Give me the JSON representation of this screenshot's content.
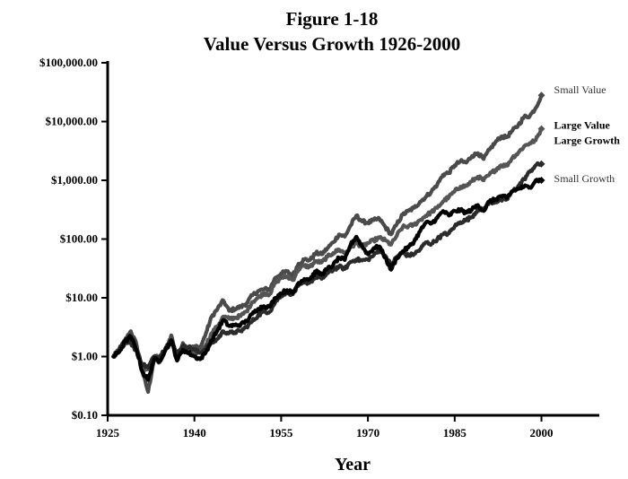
{
  "chart_data": {
    "type": "line",
    "title_line1": "Figure 1-18",
    "title_line2": "Value Versus Growth 1926-2000",
    "xlabel": "Year",
    "ylabel": "",
    "y_scale": "log",
    "xlim": [
      1925,
      2010
    ],
    "ylim": [
      0.1,
      100000
    ],
    "x_ticks": [
      {
        "value": 1925,
        "label": "1925"
      },
      {
        "value": 1940,
        "label": "1940"
      },
      {
        "value": 1955,
        "label": "1955"
      },
      {
        "value": 1970,
        "label": "1970"
      },
      {
        "value": 1985,
        "label": "1985"
      },
      {
        "value": 2000,
        "label": "2000"
      }
    ],
    "y_ticks": [
      {
        "value": 0.1,
        "label": "$0.10"
      },
      {
        "value": 1,
        "label": "$1.00"
      },
      {
        "value": 10,
        "label": "$10.00"
      },
      {
        "value": 100,
        "label": "$100.00"
      },
      {
        "value": 1000,
        "label": "$1,000.00"
      },
      {
        "value": 10000,
        "label": "$10,000.00"
      },
      {
        "value": 100000,
        "label": "$100,000.00"
      }
    ],
    "series": [
      {
        "name": "Small Value",
        "color": "#4a4a4a",
        "label_bold": false,
        "points": [
          [
            1926,
            1.0
          ],
          [
            1927,
            1.3
          ],
          [
            1928,
            1.9
          ],
          [
            1929,
            2.7
          ],
          [
            1930,
            1.6
          ],
          [
            1931,
            0.55
          ],
          [
            1932,
            0.25
          ],
          [
            1933,
            0.9
          ],
          [
            1934,
            0.8
          ],
          [
            1935,
            1.3
          ],
          [
            1936,
            2.3
          ],
          [
            1937,
            0.9
          ],
          [
            1938,
            1.7
          ],
          [
            1939,
            1.3
          ],
          [
            1940,
            1.5
          ],
          [
            1941,
            1.4
          ],
          [
            1942,
            2.5
          ],
          [
            1943,
            4.8
          ],
          [
            1944,
            6.5
          ],
          [
            1945,
            9.0
          ],
          [
            1946,
            6.0
          ],
          [
            1947,
            6.5
          ],
          [
            1948,
            7.0
          ],
          [
            1949,
            8.0
          ],
          [
            1950,
            11.0
          ],
          [
            1951,
            13
          ],
          [
            1952,
            14
          ],
          [
            1953,
            14
          ],
          [
            1954,
            22
          ],
          [
            1955,
            26
          ],
          [
            1956,
            28
          ],
          [
            1957,
            24
          ],
          [
            1958,
            38
          ],
          [
            1959,
            45
          ],
          [
            1960,
            44
          ],
          [
            1961,
            58
          ],
          [
            1962,
            55
          ],
          [
            1963,
            70
          ],
          [
            1964,
            88
          ],
          [
            1965,
            120
          ],
          [
            1966,
            110
          ],
          [
            1967,
            170
          ],
          [
            1968,
            250
          ],
          [
            1969,
            200
          ],
          [
            1970,
            190
          ],
          [
            1971,
            210
          ],
          [
            1972,
            220
          ],
          [
            1973,
            160
          ],
          [
            1974,
            120
          ],
          [
            1975,
            180
          ],
          [
            1976,
            260
          ],
          [
            1977,
            300
          ],
          [
            1978,
            340
          ],
          [
            1979,
            430
          ],
          [
            1980,
            520
          ],
          [
            1981,
            650
          ],
          [
            1982,
            850
          ],
          [
            1983,
            1250
          ],
          [
            1984,
            1350
          ],
          [
            1985,
            1800
          ],
          [
            1986,
            2100
          ],
          [
            1987,
            2000
          ],
          [
            1988,
            2600
          ],
          [
            1989,
            2900
          ],
          [
            1990,
            2300
          ],
          [
            1991,
            3300
          ],
          [
            1992,
            4400
          ],
          [
            1993,
            5500
          ],
          [
            1994,
            5400
          ],
          [
            1995,
            7000
          ],
          [
            1996,
            8700
          ],
          [
            1997,
            12000
          ],
          [
            1998,
            12500
          ],
          [
            1999,
            17000
          ],
          [
            2000,
            28000
          ]
        ]
      },
      {
        "name": "Large Value",
        "color": "#555555",
        "label_bold": true,
        "points": [
          [
            1926,
            1.0
          ],
          [
            1927,
            1.3
          ],
          [
            1928,
            1.7
          ],
          [
            1929,
            1.9
          ],
          [
            1930,
            1.3
          ],
          [
            1931,
            0.65
          ],
          [
            1932,
            0.6
          ],
          [
            1933,
            1.0
          ],
          [
            1934,
            0.95
          ],
          [
            1935,
            1.3
          ],
          [
            1936,
            1.8
          ],
          [
            1937,
            1.0
          ],
          [
            1938,
            1.3
          ],
          [
            1939,
            1.2
          ],
          [
            1940,
            1.15
          ],
          [
            1941,
            1.2
          ],
          [
            1942,
            1.6
          ],
          [
            1943,
            2.5
          ],
          [
            1944,
            3.3
          ],
          [
            1945,
            4.8
          ],
          [
            1946,
            4.4
          ],
          [
            1947,
            4.6
          ],
          [
            1948,
            4.9
          ],
          [
            1949,
            5.9
          ],
          [
            1950,
            8.5
          ],
          [
            1951,
            10
          ],
          [
            1952,
            12
          ],
          [
            1953,
            11.5
          ],
          [
            1954,
            18
          ],
          [
            1955,
            22
          ],
          [
            1956,
            23
          ],
          [
            1957,
            20
          ],
          [
            1958,
            31
          ],
          [
            1959,
            35
          ],
          [
            1960,
            34
          ],
          [
            1961,
            42
          ],
          [
            1962,
            40
          ],
          [
            1963,
            50
          ],
          [
            1964,
            58
          ],
          [
            1965,
            66
          ],
          [
            1966,
            58
          ],
          [
            1967,
            72
          ],
          [
            1968,
            85
          ],
          [
            1969,
            75
          ],
          [
            1970,
            85
          ],
          [
            1971,
            95
          ],
          [
            1972,
            105
          ],
          [
            1973,
            95
          ],
          [
            1974,
            80
          ],
          [
            1975,
            115
          ],
          [
            1976,
            160
          ],
          [
            1977,
            165
          ],
          [
            1978,
            175
          ],
          [
            1979,
            210
          ],
          [
            1980,
            250
          ],
          [
            1981,
            290
          ],
          [
            1982,
            340
          ],
          [
            1983,
            440
          ],
          [
            1984,
            520
          ],
          [
            1985,
            650
          ],
          [
            1986,
            780
          ],
          [
            1987,
            800
          ],
          [
            1988,
            970
          ],
          [
            1989,
            1150
          ],
          [
            1990,
            1000
          ],
          [
            1991,
            1250
          ],
          [
            1992,
            1500
          ],
          [
            1993,
            1800
          ],
          [
            1994,
            1780
          ],
          [
            1995,
            2450
          ],
          [
            1996,
            2950
          ],
          [
            1997,
            3800
          ],
          [
            1998,
            4300
          ],
          [
            1999,
            4800
          ],
          [
            2000,
            7500
          ]
        ]
      },
      {
        "name": "Large Growth",
        "color": "#2b2b2b",
        "label_bold": true,
        "points": [
          [
            1926,
            1.0
          ],
          [
            1927,
            1.35
          ],
          [
            1928,
            1.85
          ],
          [
            1929,
            1.7
          ],
          [
            1930,
            1.25
          ],
          [
            1931,
            0.75
          ],
          [
            1932,
            0.65
          ],
          [
            1933,
            1.0
          ],
          [
            1934,
            1.0
          ],
          [
            1935,
            1.4
          ],
          [
            1936,
            1.8
          ],
          [
            1937,
            1.15
          ],
          [
            1938,
            1.5
          ],
          [
            1939,
            1.45
          ],
          [
            1940,
            1.3
          ],
          [
            1941,
            1.15
          ],
          [
            1942,
            1.4
          ],
          [
            1943,
            1.7
          ],
          [
            1944,
            2.0
          ],
          [
            1945,
            2.7
          ],
          [
            1946,
            2.5
          ],
          [
            1947,
            2.6
          ],
          [
            1948,
            2.7
          ],
          [
            1949,
            3.2
          ],
          [
            1950,
            4.0
          ],
          [
            1951,
            5.0
          ],
          [
            1952,
            5.8
          ],
          [
            1953,
            5.8
          ],
          [
            1954,
            8.5
          ],
          [
            1955,
            11
          ],
          [
            1956,
            12.5
          ],
          [
            1957,
            11.5
          ],
          [
            1958,
            16
          ],
          [
            1959,
            18
          ],
          [
            1960,
            18.5
          ],
          [
            1961,
            23
          ],
          [
            1962,
            21
          ],
          [
            1963,
            26
          ],
          [
            1964,
            30
          ],
          [
            1965,
            34
          ],
          [
            1966,
            31
          ],
          [
            1967,
            41
          ],
          [
            1968,
            45
          ],
          [
            1969,
            43
          ],
          [
            1970,
            45
          ],
          [
            1971,
            53
          ],
          [
            1972,
            65
          ],
          [
            1973,
            52
          ],
          [
            1974,
            36
          ],
          [
            1975,
            50
          ],
          [
            1976,
            58
          ],
          [
            1977,
            52
          ],
          [
            1978,
            56
          ],
          [
            1979,
            66
          ],
          [
            1980,
            88
          ],
          [
            1981,
            83
          ],
          [
            1982,
            100
          ],
          [
            1983,
            120
          ],
          [
            1984,
            125
          ],
          [
            1985,
            165
          ],
          [
            1986,
            195
          ],
          [
            1987,
            210
          ],
          [
            1988,
            240
          ],
          [
            1989,
            320
          ],
          [
            1990,
            320
          ],
          [
            1991,
            420
          ],
          [
            1992,
            430
          ],
          [
            1993,
            460
          ],
          [
            1994,
            470
          ],
          [
            1995,
            650
          ],
          [
            1996,
            800
          ],
          [
            1997,
            1050
          ],
          [
            1998,
            1400
          ],
          [
            1999,
            1800
          ],
          [
            2000,
            1900
          ]
        ]
      },
      {
        "name": "Small Growth",
        "color": "#000000",
        "label_bold": false,
        "points": [
          [
            1926,
            1.0
          ],
          [
            1927,
            1.2
          ],
          [
            1928,
            1.8
          ],
          [
            1929,
            2.2
          ],
          [
            1930,
            1.3
          ],
          [
            1931,
            0.55
          ],
          [
            1932,
            0.4
          ],
          [
            1933,
            0.9
          ],
          [
            1934,
            0.85
          ],
          [
            1935,
            1.3
          ],
          [
            1936,
            1.9
          ],
          [
            1937,
            0.85
          ],
          [
            1938,
            1.3
          ],
          [
            1939,
            1.15
          ],
          [
            1940,
            1.0
          ],
          [
            1941,
            0.9
          ],
          [
            1942,
            1.2
          ],
          [
            1943,
            1.9
          ],
          [
            1944,
            2.8
          ],
          [
            1945,
            4.2
          ],
          [
            1946,
            3.3
          ],
          [
            1947,
            3.4
          ],
          [
            1948,
            3.5
          ],
          [
            1949,
            4.0
          ],
          [
            1950,
            5.3
          ],
          [
            1951,
            6.5
          ],
          [
            1952,
            7.2
          ],
          [
            1953,
            7.0
          ],
          [
            1954,
            10
          ],
          [
            1955,
            12
          ],
          [
            1956,
            13.5
          ],
          [
            1957,
            12
          ],
          [
            1958,
            18
          ],
          [
            1959,
            21
          ],
          [
            1960,
            21
          ],
          [
            1961,
            28
          ],
          [
            1962,
            25
          ],
          [
            1963,
            31
          ],
          [
            1964,
            36
          ],
          [
            1965,
            48
          ],
          [
            1966,
            44
          ],
          [
            1967,
            80
          ],
          [
            1968,
            110
          ],
          [
            1969,
            75
          ],
          [
            1970,
            55
          ],
          [
            1971,
            70
          ],
          [
            1972,
            75
          ],
          [
            1973,
            48
          ],
          [
            1974,
            30
          ],
          [
            1975,
            48
          ],
          [
            1976,
            62
          ],
          [
            1977,
            72
          ],
          [
            1978,
            92
          ],
          [
            1979,
            135
          ],
          [
            1980,
            190
          ],
          [
            1981,
            185
          ],
          [
            1982,
            230
          ],
          [
            1983,
            300
          ],
          [
            1984,
            250
          ],
          [
            1985,
            300
          ],
          [
            1986,
            310
          ],
          [
            1987,
            280
          ],
          [
            1988,
            320
          ],
          [
            1989,
            380
          ],
          [
            1990,
            300
          ],
          [
            1991,
            440
          ],
          [
            1992,
            470
          ],
          [
            1993,
            540
          ],
          [
            1994,
            500
          ],
          [
            1995,
            660
          ],
          [
            1996,
            710
          ],
          [
            1997,
            780
          ],
          [
            1998,
            760
          ],
          [
            1999,
            1000
          ],
          [
            2000,
            1000
          ]
        ]
      }
    ]
  }
}
